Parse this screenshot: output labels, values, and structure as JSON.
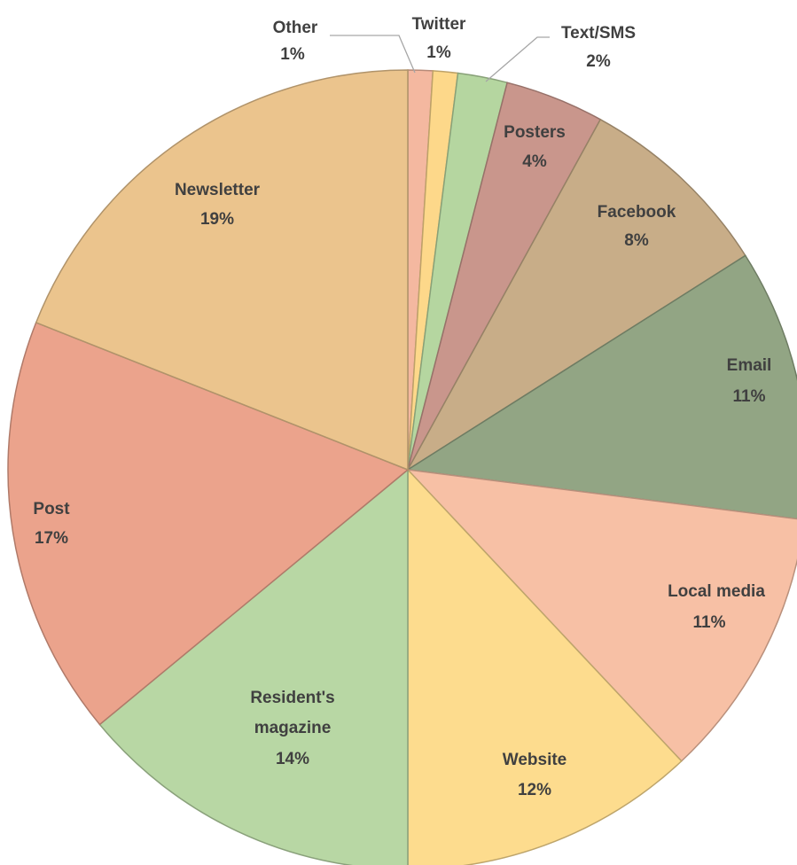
{
  "chart_data": {
    "type": "pie",
    "categories": [
      "Other",
      "Twitter",
      "Text/SMS",
      "Posters",
      "Facebook",
      "Email",
      "Local media",
      "Website",
      "Resident's magazine",
      "Post",
      "Newsletter"
    ],
    "values": [
      1,
      1,
      2,
      4,
      8,
      11,
      11,
      12,
      14,
      17,
      19
    ],
    "value_labels": [
      "1%",
      "1%",
      "2%",
      "4%",
      "8%",
      "11%",
      "11%",
      "12%",
      "14%",
      "17%",
      "19%"
    ],
    "colors": [
      "#f4b8a0",
      "#fdd88a",
      "#b5d6a0",
      "#c9968c",
      "#c8ad88",
      "#92a584",
      "#f7c0a5",
      "#fddc8e",
      "#b8d7a4",
      "#eba38c",
      "#ebc48d"
    ]
  }
}
